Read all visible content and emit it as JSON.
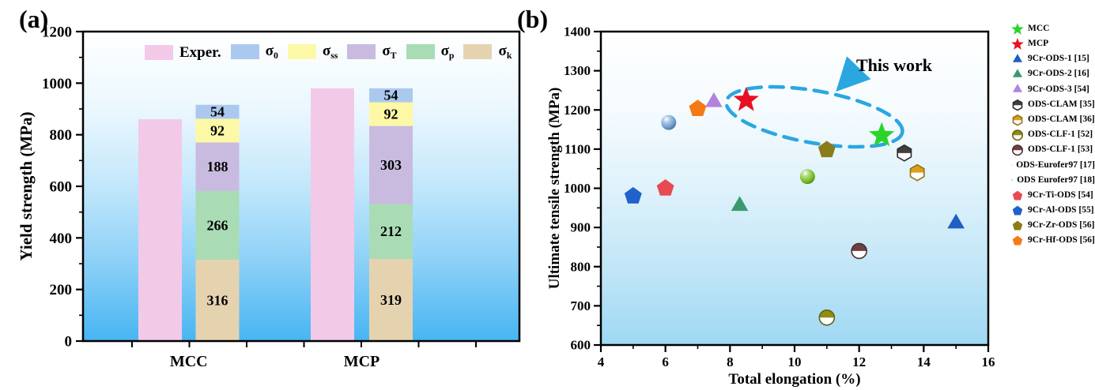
{
  "figure": {
    "panel_a_label": "(a)",
    "panel_b_label": "(b)",
    "background": "#ffffff"
  },
  "chart_data": [
    {
      "id": "yield-strength-bars",
      "type": "bar",
      "title": "",
      "xlabel": "",
      "ylabel": "Yield strength (MPa)",
      "ylim": [
        0,
        1200
      ],
      "y_ticks": [
        0,
        200,
        400,
        600,
        800,
        1000,
        1200
      ],
      "y_minor_step": 100,
      "grid": false,
      "legend_position": "top-inside",
      "plot_bg_top": "#ffffff",
      "plot_bg_bottom": "#47b5f3",
      "categories": [
        "MCC",
        "MCP"
      ],
      "legend": [
        {
          "key": "exper",
          "base": "Exper.",
          "sub": "",
          "color": "#f3c9e8"
        },
        {
          "key": "sigma_0",
          "base": "σ",
          "sub": "0",
          "color": "#abc9ef"
        },
        {
          "key": "sigma_ss",
          "base": "σ",
          "sub": "ss",
          "color": "#fdf8a6"
        },
        {
          "key": "sigma_T",
          "base": "σ",
          "sub": "T",
          "color": "#c9bbdf"
        },
        {
          "key": "sigma_p",
          "base": "σ",
          "sub": "p",
          "color": "#a9dcb5"
        },
        {
          "key": "sigma_k",
          "base": "σ",
          "sub": "k",
          "color": "#e5d3b0"
        }
      ],
      "groups": [
        {
          "category": "MCC",
          "experimental": 860,
          "stack": [
            [
              "sigma_k",
              316
            ],
            [
              "sigma_p",
              266
            ],
            [
              "sigma_T",
              188
            ],
            [
              "sigma_ss",
              92
            ],
            [
              "sigma_0",
              54
            ]
          ]
        },
        {
          "category": "MCP",
          "experimental": 980,
          "stack": [
            [
              "sigma_k",
              319
            ],
            [
              "sigma_p",
              212
            ],
            [
              "sigma_T",
              303
            ],
            [
              "sigma_ss",
              92
            ],
            [
              "sigma_0",
              54
            ]
          ]
        }
      ]
    },
    {
      "id": "uts-vs-elongation",
      "type": "scatter",
      "title": "",
      "xlabel": "Total elongation (%)",
      "ylabel": "Ultimate tensile strength (MPa)",
      "xlim": [
        4,
        16
      ],
      "ylim": [
        600,
        1400
      ],
      "x_ticks": [
        4,
        6,
        8,
        10,
        12,
        14,
        16
      ],
      "y_ticks": [
        600,
        700,
        800,
        900,
        1000,
        1100,
        1200,
        1300,
        1400
      ],
      "x_minor_step": 1,
      "y_minor_step": 50,
      "grid": false,
      "legend_position": "right-outside",
      "plot_bg_top": "#ffffff",
      "plot_bg_bottom": "#9ed8f3",
      "annotation": {
        "text": "This work",
        "color": "#2aa7e0"
      },
      "series": [
        {
          "name": "MCC",
          "marker": "star",
          "color": "#2bd42b",
          "x": 12.7,
          "y": 1135
        },
        {
          "name": "MCP",
          "marker": "star",
          "color": "#e81123",
          "x": 8.5,
          "y": 1225
        },
        {
          "name": "9Cr-ODS-1 [15]",
          "marker": "triangle",
          "color": "#1f5fc4",
          "x": 15.0,
          "y": 910
        },
        {
          "name": "9Cr-ODS-2 [16]",
          "marker": "triangle",
          "color": "#3a9a6e",
          "x": 8.3,
          "y": 955
        },
        {
          "name": "9Cr-ODS-3 [54]",
          "marker": "triangle",
          "color": "#b183dc",
          "x": 7.5,
          "y": 1220
        },
        {
          "name": "ODS-CLAM [35]",
          "marker": "hexagon-half",
          "color": "#3f3f3f",
          "x": 13.4,
          "y": 1090
        },
        {
          "name": "ODS-CLAM [36]",
          "marker": "hexagon-half",
          "color": "#d8a01d",
          "x": 13.8,
          "y": 1040
        },
        {
          "name": "ODS-CLF-1 [52]",
          "marker": "circle-half",
          "color": "#8f8d13",
          "x": 11.0,
          "y": 670
        },
        {
          "name": "ODS-CLF-1 [53]",
          "marker": "circle-half",
          "color": "#6f4040",
          "x": 12.0,
          "y": 840
        },
        {
          "name": "ODS-Eurofer97 [17]",
          "marker": "sphere",
          "color": "#6f9fd0",
          "x": 6.1,
          "y": 1168
        },
        {
          "name": "ODS Eurofer97 [18]",
          "marker": "sphere",
          "color": "#77c022",
          "x": 10.4,
          "y": 1030
        },
        {
          "name": "9Cr-Ti-ODS [54]",
          "marker": "pentagon",
          "color": "#e84a52",
          "x": 6.0,
          "y": 1000
        },
        {
          "name": "9Cr-Al-ODS [55]",
          "marker": "pentagon",
          "color": "#2161cc",
          "x": 5.0,
          "y": 980
        },
        {
          "name": "9Cr-Zr-ODS [56]",
          "marker": "pentagon",
          "color": "#8b7c1a",
          "x": 11.0,
          "y": 1098
        },
        {
          "name": "9Cr-Hf-ODS [56]",
          "marker": "pentagon",
          "color": "#f57a14",
          "x": 7.0,
          "y": 1203
        }
      ]
    }
  ]
}
